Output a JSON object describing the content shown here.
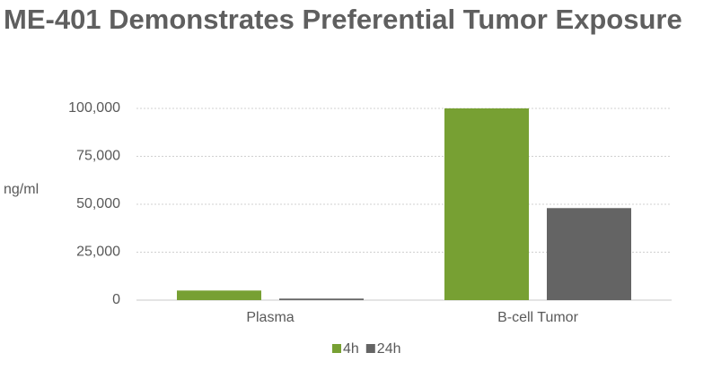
{
  "chart_data": {
    "type": "bar",
    "title": "ME-401 Demonstrates Preferential Tumor Exposure",
    "y_label": "ng/ml",
    "categories": [
      "Plasma",
      "B-cell Tumor"
    ],
    "series": [
      {
        "name": "4h",
        "color": "#77a033",
        "values": [
          5000,
          100000
        ]
      },
      {
        "name": "24h",
        "color": "#646464",
        "values": [
          800,
          48000
        ]
      }
    ],
    "ylim": [
      0,
      100000
    ],
    "yticks": [
      0,
      {
        "value": 25000,
        "label": "25,000"
      },
      {
        "value": 50000,
        "label": "50,000"
      },
      {
        "value": 75000,
        "label": "75,000"
      },
      {
        "value": 100000,
        "label": "100,000"
      }
    ],
    "grid": true
  }
}
